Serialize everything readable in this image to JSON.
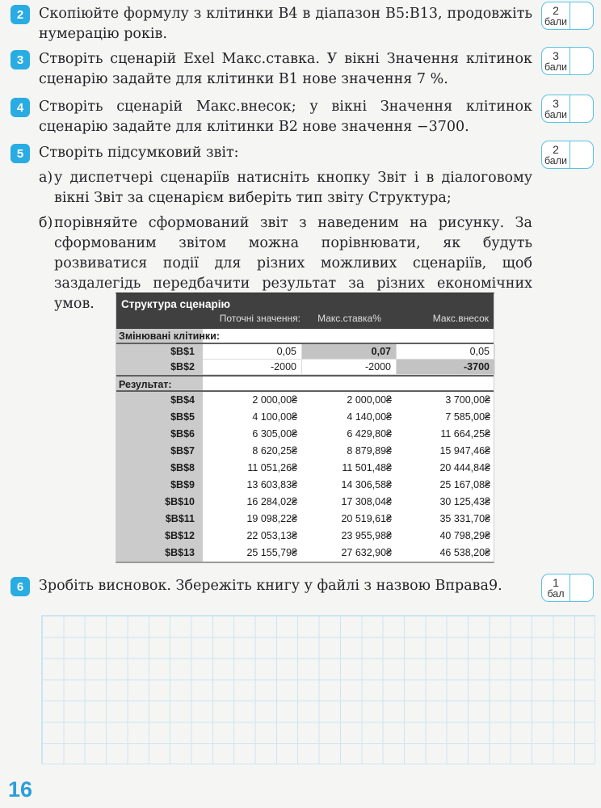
{
  "colors": {
    "accent_blue": "#29ace2",
    "badge_border": "#58c3e5",
    "grid_line": "#cbe5f4",
    "page_number_blue": "#2b9fd8",
    "report_header_bg": "#404040",
    "report_label_bg": "#cbcbcb",
    "report_highlight_bg": "#c3c3c3"
  },
  "page": {
    "number": "16"
  },
  "tasks": [
    {
      "num": "2",
      "score": "2",
      "score_unit": "бали",
      "text": "Скопіюйте формулу з клітинки B4 в діапазон B5:B13, продовжіть нумерацію років."
    },
    {
      "num": "3",
      "score": "3",
      "score_unit": "бали",
      "text": "Створіть сценарій Exel Макс.ставка. У вікні Значення клітинок сценарію задайте для клітинки B1 нове значення 7 %."
    },
    {
      "num": "4",
      "score": "3",
      "score_unit": "бали",
      "text": "Створіть сценарій Макс.внесок; у вікні Значення клітинок сценарію задайте для клітинки B2 нове значення −3700."
    },
    {
      "num": "5",
      "score": "2",
      "score_unit": "бали",
      "text": "Створіть підсумковий звіт:",
      "subitems": [
        {
          "marker": "а)",
          "text": "у диспетчері сценаріїв натисніть кнопку Звіт і в діалоговому вікні Звіт за сценарієм виберіть тип звіту Структура;"
        },
        {
          "marker": "б)",
          "text": "порівняйте сформований звіт з наведеним на рисунку. За сформованим звітом можна порівнювати, як будуть розвиватися події для різних можливих сценаріїв, щоб заздалегідь передбачити результат за різних економічних умов."
        }
      ]
    },
    {
      "num": "6",
      "score": "1",
      "score_unit": "бал",
      "text": "Зробіть висновок. Збережіть книгу у файлі з назвою Вправа9."
    }
  ],
  "report": {
    "title": "Структура сценарію",
    "columns": [
      "Поточні значення:",
      "Макс.ставка%",
      "Макс.внесок"
    ],
    "section_changing": "Змінювані клітинки:",
    "section_result": "Результат:",
    "changing_rows": [
      {
        "label": "$B$1",
        "values": [
          "0,05",
          "0,07",
          "0,05"
        ],
        "highlight": 1
      },
      {
        "label": "$B$2",
        "values": [
          "-2000",
          "-2000",
          "-3700"
        ],
        "highlight": 2
      }
    ],
    "result_rows": [
      {
        "label": "$B$4",
        "values": [
          "2 000,00₴",
          "2 000,00₴",
          "3 700,00₴"
        ]
      },
      {
        "label": "$B$5",
        "values": [
          "4 100,00₴",
          "4 140,00₴",
          "7 585,00₴"
        ]
      },
      {
        "label": "$B$6",
        "values": [
          "6 305,00₴",
          "6 429,80₴",
          "11 664,25₴"
        ]
      },
      {
        "label": "$B$7",
        "values": [
          "8 620,25₴",
          "8 879,89₴",
          "15 947,46₴"
        ]
      },
      {
        "label": "$B$8",
        "values": [
          "11 051,26₴",
          "11 501,48₴",
          "20 444,84₴"
        ]
      },
      {
        "label": "$B$9",
        "values": [
          "13 603,83₴",
          "14 306,58₴",
          "25 167,08₴"
        ]
      },
      {
        "label": "$B$10",
        "values": [
          "16 284,02₴",
          "17 308,04₴",
          "30 125,43₴"
        ]
      },
      {
        "label": "$B$11",
        "values": [
          "19 098,22₴",
          "20 519,61₴",
          "35 331,70₴"
        ]
      },
      {
        "label": "$B$12",
        "values": [
          "22 053,13₴",
          "23 955,98₴",
          "40 798,29₴"
        ]
      },
      {
        "label": "$B$13",
        "values": [
          "25 155,79₴",
          "27 632,90₴",
          "46 538,20₴"
        ]
      }
    ]
  }
}
